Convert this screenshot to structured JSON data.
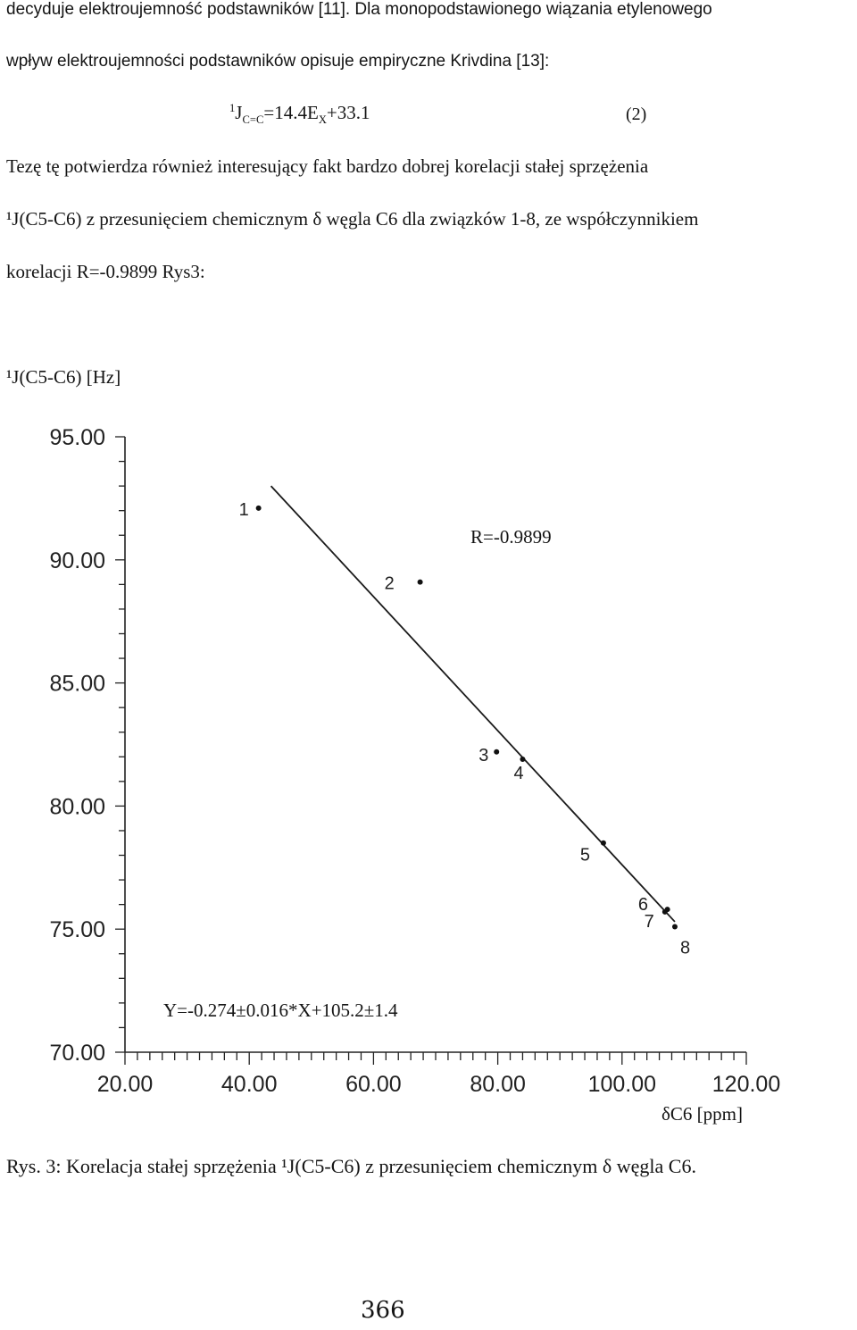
{
  "text": {
    "line1": "decyduje elektroujemność podstawników [11]. Dla monopodstawionego wiązania etylenowego",
    "line2": "wpływ elektroujemności podstawników opisuje empiryczne Krivdina [13]:",
    "eq_pre": "1",
    "eq_J": "J",
    "eq_sub": "C=C",
    "eq_mid": "=14.4E",
    "eq_subx": "X",
    "eq_end": "+33.1",
    "eq_num": "(2)",
    "line3": "Tezę tę potwierdza również interesujący fakt bardzo dobrej korelacji stałej sprzężenia",
    "line4": "¹J(C5-C6) z przesunięciem chemicznym δ węgla C6 dla związków 1-8, ze współczynnikiem",
    "line5": "korelacji R=-0.9899 Rys3:",
    "caption": "Rys. 3: Korelacja stałej sprzężenia ¹J(C5-C6) z przesunięciem chemicznym δ węgla C6.",
    "page_number": "366"
  },
  "chart_data": {
    "type": "scatter",
    "ylabel": "¹J(C5-C6) [Hz]",
    "xlabel": "δC6 [ppm]",
    "xlim": [
      20,
      120
    ],
    "ylim": [
      70,
      95
    ],
    "x_ticks": [
      "20.00",
      "40.00",
      "60.00",
      "80.00",
      "100.00",
      "120.00"
    ],
    "y_ticks": [
      "95.00",
      "90.00",
      "85.00",
      "80.00",
      "75.00",
      "70.00"
    ],
    "points": [
      {
        "label": "1",
        "x": 41.5,
        "y": 92.1
      },
      {
        "label": "2",
        "x": 67.5,
        "y": 89.1
      },
      {
        "label": "3",
        "x": 79.8,
        "y": 82.2
      },
      {
        "label": "4",
        "x": 84.0,
        "y": 81.9
      },
      {
        "label": "5",
        "x": 97.0,
        "y": 78.5
      },
      {
        "label": "6",
        "x": 106.9,
        "y": 75.7
      },
      {
        "label": "7",
        "x": 107.3,
        "y": 75.8
      },
      {
        "label": "8",
        "x": 108.5,
        "y": 75.1
      }
    ],
    "fit_line": {
      "x": [
        43.5,
        108.5
      ],
      "y": [
        93.0,
        75.3
      ]
    },
    "annotations": {
      "r_value": "R=-0.9899",
      "equation": "Y=-0.274±0.016*X+105.2±1.4"
    }
  }
}
